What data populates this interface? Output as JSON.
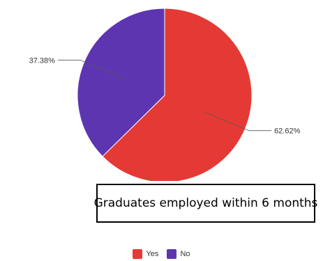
{
  "chart_data": {
    "type": "pie",
    "title": "Graduates employed within 6 months",
    "legend_position": "bottom",
    "slices": [
      {
        "label": "Yes",
        "value": 62.62,
        "value_label": "62.62%",
        "color": "#e53935"
      },
      {
        "label": "No",
        "value": 37.38,
        "value_label": "37.38%",
        "color": "#5e35b1"
      }
    ]
  }
}
